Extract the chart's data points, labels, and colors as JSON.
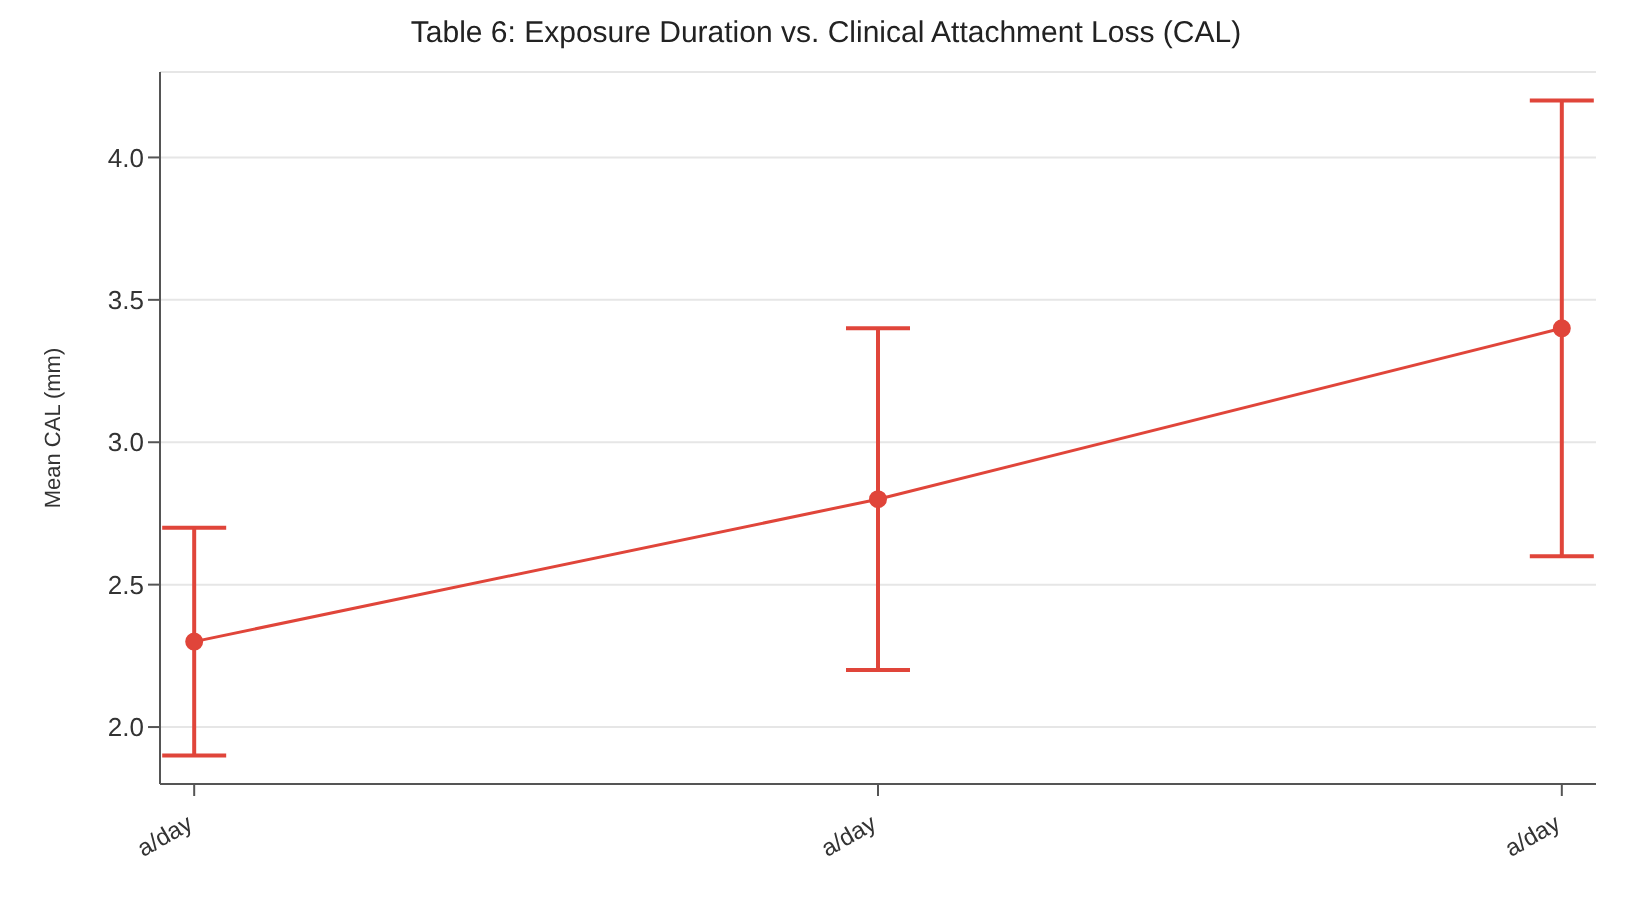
{
  "chart_data": {
    "type": "line",
    "title": "Table 6: Exposure Duration vs. Clinical Attachment Loss (CAL)",
    "ylabel": "Mean CAL (mm)",
    "categories": [
      "a/day",
      "a/day",
      "a/day"
    ],
    "series": [
      {
        "color": "#e0453a",
        "values": [
          2.3,
          2.8,
          3.4
        ],
        "errors": [
          0.4,
          0.6,
          0.8
        ]
      }
    ],
    "ylim": [
      1.8,
      4.3
    ],
    "yticks": [
      {
        "value": 2,
        "label": "2.0"
      },
      2.5,
      {
        "value": 3,
        "label": "3.0"
      },
      3.5,
      {
        "value": 4,
        "label": "4.0"
      }
    ],
    "grid": "y",
    "marker": "circle",
    "line_style": "solid",
    "legend": false
  }
}
